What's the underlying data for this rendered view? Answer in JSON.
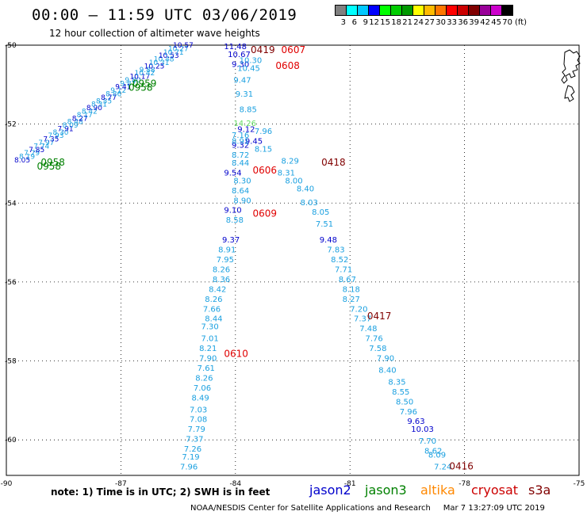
{
  "header": {
    "title": "00:00 – 11:59 UTC 03/06/2019",
    "subtitle": "12 hour collection of altimeter wave heights"
  },
  "scale": {
    "colors": [
      "#808080",
      "#00ffff",
      "#00c8ff",
      "#0000ff",
      "#00ff00",
      "#00cc00",
      "#009900",
      "#ffff00",
      "#ffbb00",
      "#ff7700",
      "#ff0000",
      "#cc0000",
      "#800000",
      "#990099",
      "#cc00cc",
      "#000000"
    ],
    "labels": [
      "3",
      "6",
      "9",
      "12",
      "15",
      "18",
      "21",
      "24",
      "27",
      "30",
      "33",
      "36",
      "39",
      "42",
      "45",
      "70"
    ],
    "unit": "(ft)"
  },
  "axes": {
    "x_ticks": [
      "-90",
      "-87",
      "-84",
      "-81",
      "-78",
      "-75"
    ],
    "y_ticks": [
      "-50",
      "-52",
      "-54",
      "-56",
      "-58",
      "-60"
    ]
  },
  "tracks": [
    {
      "satellite": "jason2",
      "color_class": "jason2",
      "points": [
        {
          "lon": -84.3,
          "lat": -50.1,
          "v": "11.48"
        },
        {
          "lon": -84.2,
          "lat": -50.3,
          "v": "10.67"
        },
        {
          "lon": -84.1,
          "lat": -50.55,
          "v": "9.30"
        },
        {
          "lon": -83.95,
          "lat": -52.2,
          "v": "9.12"
        },
        {
          "lon": -83.75,
          "lat": -52.5,
          "v": "9.45"
        },
        {
          "lon": -84.1,
          "lat": -52.6,
          "v": "9.32"
        },
        {
          "lon": -84.3,
          "lat": -53.3,
          "v": "9.54"
        },
        {
          "lon": -84.3,
          "lat": -54.25,
          "v": "9.10"
        },
        {
          "lon": -84.35,
          "lat": -55.0,
          "v": "9.37"
        },
        {
          "lon": -81.8,
          "lat": -55.0,
          "v": "9.48"
        },
        {
          "lon": -79.5,
          "lat": -59.6,
          "v": "9.63"
        },
        {
          "lon": -79.4,
          "lat": -59.8,
          "v": "10.03"
        }
      ]
    },
    {
      "satellite": "jason2",
      "color_class": "jason2-light",
      "points": [
        {
          "lon": -83.9,
          "lat": -50.45,
          "v": "10.30"
        },
        {
          "lon": -83.95,
          "lat": -50.65,
          "v": "10.45"
        },
        {
          "lon": -84.05,
          "lat": -50.95,
          "v": "9.47"
        },
        {
          "lon": -84.0,
          "lat": -51.3,
          "v": "9.31"
        },
        {
          "lon": -83.9,
          "lat": -51.7,
          "v": "8.85"
        },
        {
          "lon": -83.5,
          "lat": -52.25,
          "v": "7.96"
        },
        {
          "lon": -84.1,
          "lat": -52.35,
          "v": "7.16"
        },
        {
          "lon": -84.1,
          "lat": -52.5,
          "v": "8.91"
        },
        {
          "lon": -83.5,
          "lat": -52.7,
          "v": "8.15"
        },
        {
          "lon": -84.1,
          "lat": -52.85,
          "v": "8.72"
        },
        {
          "lon": -82.8,
          "lat": -53.0,
          "v": "8.29"
        },
        {
          "lon": -84.1,
          "lat": -53.05,
          "v": "8.44"
        },
        {
          "lon": -82.9,
          "lat": -53.3,
          "v": "8.31"
        },
        {
          "lon": -84.05,
          "lat": -53.5,
          "v": "8.30"
        },
        {
          "lon": -82.7,
          "lat": -53.5,
          "v": "8.00"
        },
        {
          "lon": -84.1,
          "lat": -53.75,
          "v": "8.64"
        },
        {
          "lon": -82.4,
          "lat": -53.7,
          "v": "8.40"
        },
        {
          "lon": -84.05,
          "lat": -54.0,
          "v": "8.90"
        },
        {
          "lon": -82.3,
          "lat": -54.05,
          "v": "8.03"
        },
        {
          "lon": -82.0,
          "lat": -54.3,
          "v": "8.05"
        },
        {
          "lon": -84.25,
          "lat": -54.5,
          "v": "8.58"
        },
        {
          "lon": -81.9,
          "lat": -54.6,
          "v": "7.51"
        },
        {
          "lon": -84.45,
          "lat": -55.25,
          "v": "8.91"
        },
        {
          "lon": -81.6,
          "lat": -55.25,
          "v": "7.83"
        },
        {
          "lon": -84.5,
          "lat": -55.5,
          "v": "7.95"
        },
        {
          "lon": -81.5,
          "lat": -55.5,
          "v": "8.52"
        },
        {
          "lon": -84.6,
          "lat": -55.75,
          "v": "8.26"
        },
        {
          "lon": -81.4,
          "lat": -55.75,
          "v": "7.71"
        },
        {
          "lon": -84.6,
          "lat": -56.0,
          "v": "8.36"
        },
        {
          "lon": -81.3,
          "lat": -56.0,
          "v": "8.67"
        },
        {
          "lon": -84.7,
          "lat": -56.25,
          "v": "8.42"
        },
        {
          "lon": -81.2,
          "lat": -56.25,
          "v": "8.18"
        },
        {
          "lon": -84.8,
          "lat": -56.5,
          "v": "8.26"
        },
        {
          "lon": -81.2,
          "lat": -56.5,
          "v": "8.27"
        },
        {
          "lon": -84.85,
          "lat": -56.75,
          "v": "7.66"
        },
        {
          "lon": -81.0,
          "lat": -56.75,
          "v": "7.20"
        },
        {
          "lon": -84.8,
          "lat": -57.0,
          "v": "8.44"
        },
        {
          "lon": -80.9,
          "lat": -57.0,
          "v": "7.37"
        },
        {
          "lon": -84.9,
          "lat": -57.2,
          "v": "7.30"
        },
        {
          "lon": -80.75,
          "lat": -57.25,
          "v": "7.48"
        },
        {
          "lon": -84.9,
          "lat": -57.5,
          "v": "7.01"
        },
        {
          "lon": -80.6,
          "lat": -57.5,
          "v": "7.76"
        },
        {
          "lon": -84.95,
          "lat": -57.75,
          "v": "8.21"
        },
        {
          "lon": -80.5,
          "lat": -57.75,
          "v": "7.58"
        },
        {
          "lon": -84.95,
          "lat": -58.0,
          "v": "7.90"
        },
        {
          "lon": -80.3,
          "lat": -58.0,
          "v": "7.90"
        },
        {
          "lon": -85.0,
          "lat": -58.25,
          "v": "7.61"
        },
        {
          "lon": -80.25,
          "lat": -58.3,
          "v": "8.40"
        },
        {
          "lon": -85.05,
          "lat": -58.5,
          "v": "8.26"
        },
        {
          "lon": -80.0,
          "lat": -58.6,
          "v": "8.35"
        },
        {
          "lon": -85.1,
          "lat": -58.75,
          "v": "7.06"
        },
        {
          "lon": -79.9,
          "lat": -58.85,
          "v": "8.55"
        },
        {
          "lon": -85.15,
          "lat": -59.0,
          "v": "8.49"
        },
        {
          "lon": -79.8,
          "lat": -59.1,
          "v": "8.50"
        },
        {
          "lon": -85.2,
          "lat": -59.3,
          "v": "7.03"
        },
        {
          "lon": -79.7,
          "lat": -59.35,
          "v": "7.96"
        },
        {
          "lon": -85.2,
          "lat": -59.55,
          "v": "7.08"
        },
        {
          "lon": -85.25,
          "lat": -59.8,
          "v": "7.79"
        },
        {
          "lon": -79.2,
          "lat": -60.1,
          "v": "7.70"
        },
        {
          "lon": -85.3,
          "lat": -60.05,
          "v": "7.37"
        },
        {
          "lon": -79.05,
          "lat": -60.35,
          "v": "8.62"
        },
        {
          "lon": -85.35,
          "lat": -60.3,
          "v": "7.26"
        },
        {
          "lon": -78.95,
          "lat": -60.45,
          "v": "8.09"
        },
        {
          "lon": -85.4,
          "lat": -60.5,
          "v": "7.19"
        },
        {
          "lon": -78.8,
          "lat": -60.75,
          "v": "7.24"
        },
        {
          "lon": -85.45,
          "lat": -60.75,
          "v": "7.96"
        }
      ]
    },
    {
      "satellite": "jason3",
      "color_class": "jason3",
      "points": [
        {
          "lon": -84.05,
          "lat": -52.05,
          "v": "14.26"
        }
      ]
    }
  ],
  "time_labels": [
    {
      "lon": -83.6,
      "lat": -50.2,
      "text": "0419",
      "color": "#800000"
    },
    {
      "lon": -82.8,
      "lat": -50.2,
      "text": "0607",
      "color": "#e00000"
    },
    {
      "lon": -82.95,
      "lat": -50.6,
      "text": "0608",
      "color": "#e00000"
    },
    {
      "lon": -83.55,
      "lat": -53.25,
      "text": "0606",
      "color": "#e00000"
    },
    {
      "lon": -81.75,
      "lat": -53.05,
      "text": "0418",
      "color": "#800000"
    },
    {
      "lon": -83.55,
      "lat": -54.35,
      "text": "0609",
      "color": "#e00000"
    },
    {
      "lon": -80.55,
      "lat": -56.95,
      "text": "0417",
      "color": "#800000"
    },
    {
      "lon": -84.3,
      "lat": -57.9,
      "text": "0610",
      "color": "#e00000"
    },
    {
      "lon": -78.4,
      "lat": -60.75,
      "text": "0416",
      "color": "#800000"
    },
    {
      "lon": -86.7,
      "lat": -51.05,
      "text": "0959",
      "color": "#008000"
    },
    {
      "lon": -86.8,
      "lat": -51.15,
      "text": "0958",
      "color": "#008000"
    },
    {
      "lon": -89.1,
      "lat": -53.05,
      "text": "0958",
      "color": "#008000"
    },
    {
      "lon": -89.2,
      "lat": -53.15,
      "text": "0958",
      "color": "#008000"
    }
  ],
  "footer": {
    "note": "note:  1) Time is in UTC;  2) SWH is in feet",
    "satellites": [
      {
        "name": "jason2",
        "color": "#0000cc"
      },
      {
        "name": "jason3",
        "color": "#008000"
      },
      {
        "name": "altika",
        "color": "#ff8800"
      },
      {
        "name": "cryosat",
        "color": "#cc0000"
      },
      {
        "name": "s3a",
        "color": "#800000"
      }
    ],
    "credit": "NOAA/NESDIS Center for Satellite Applications and Research",
    "timestamp": "Mar  7 13:27:09 UTC 2019"
  }
}
